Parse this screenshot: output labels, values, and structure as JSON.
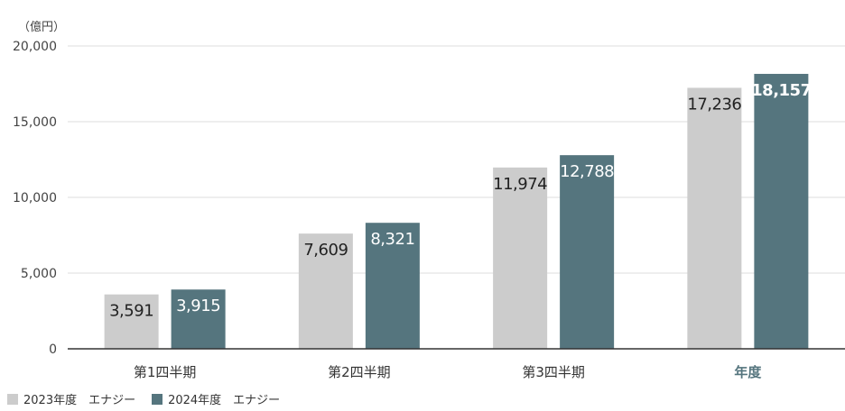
{
  "chart_data": {
    "type": "bar",
    "unit_label": "（億円）",
    "categories": [
      "第1四半期",
      "第2四半期",
      "第3四半期",
      "年度"
    ],
    "highlight_category": "年度",
    "series": [
      {
        "name": "2023年度　エナジー",
        "color": "#cccccc",
        "values": [
          3591,
          7609,
          11974,
          17236
        ],
        "labels": [
          "3,591",
          "7,609",
          "11,974",
          "17,236"
        ]
      },
      {
        "name": "2024年度　エナジー",
        "color": "#55757e",
        "values": [
          3915,
          8321,
          12788,
          18157
        ],
        "labels": [
          "3,915",
          "8,321",
          "12,788",
          "18,157"
        ]
      }
    ],
    "ylim": [
      0,
      20000
    ],
    "yticks": [
      0,
      5000,
      10000,
      15000,
      20000
    ],
    "ytick_labels": [
      "0",
      "5,000",
      "10,000",
      "15,000",
      "20,000"
    ],
    "grid": true,
    "legend_position": "bottom-left"
  }
}
